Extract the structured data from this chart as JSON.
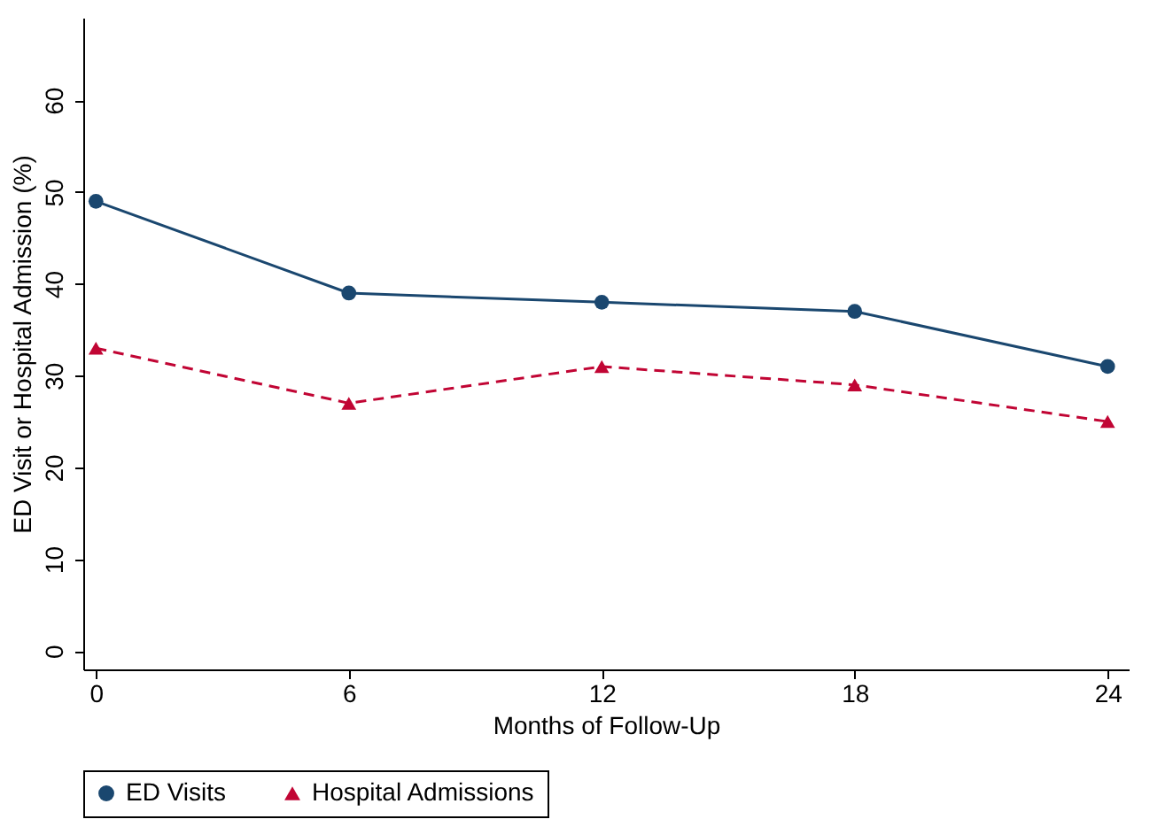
{
  "chart_data": {
    "type": "line",
    "xlabel": "Months of Follow-Up",
    "ylabel": "ED Visit or Hospital Admission (%)",
    "x": [
      0,
      6,
      12,
      18,
      24
    ],
    "series": [
      {
        "name": "ED Visits",
        "color": "#1a476f",
        "values": [
          49,
          39,
          38,
          37,
          31
        ],
        "marker": "circle",
        "line_style": "solid"
      },
      {
        "name": "Hospital Admissions",
        "color": "#c10534",
        "values": [
          33,
          27,
          31,
          29,
          25
        ],
        "marker": "triangle",
        "line_style": "dashed"
      }
    ],
    "xlim": [
      -0.3,
      24.5
    ],
    "xticks": [
      0,
      6,
      12,
      18,
      24
    ],
    "ylim": [
      -2,
      69
    ],
    "yticks": [
      0,
      10,
      20,
      30,
      40,
      50,
      60
    ],
    "grid": false,
    "legend": "bottom"
  }
}
